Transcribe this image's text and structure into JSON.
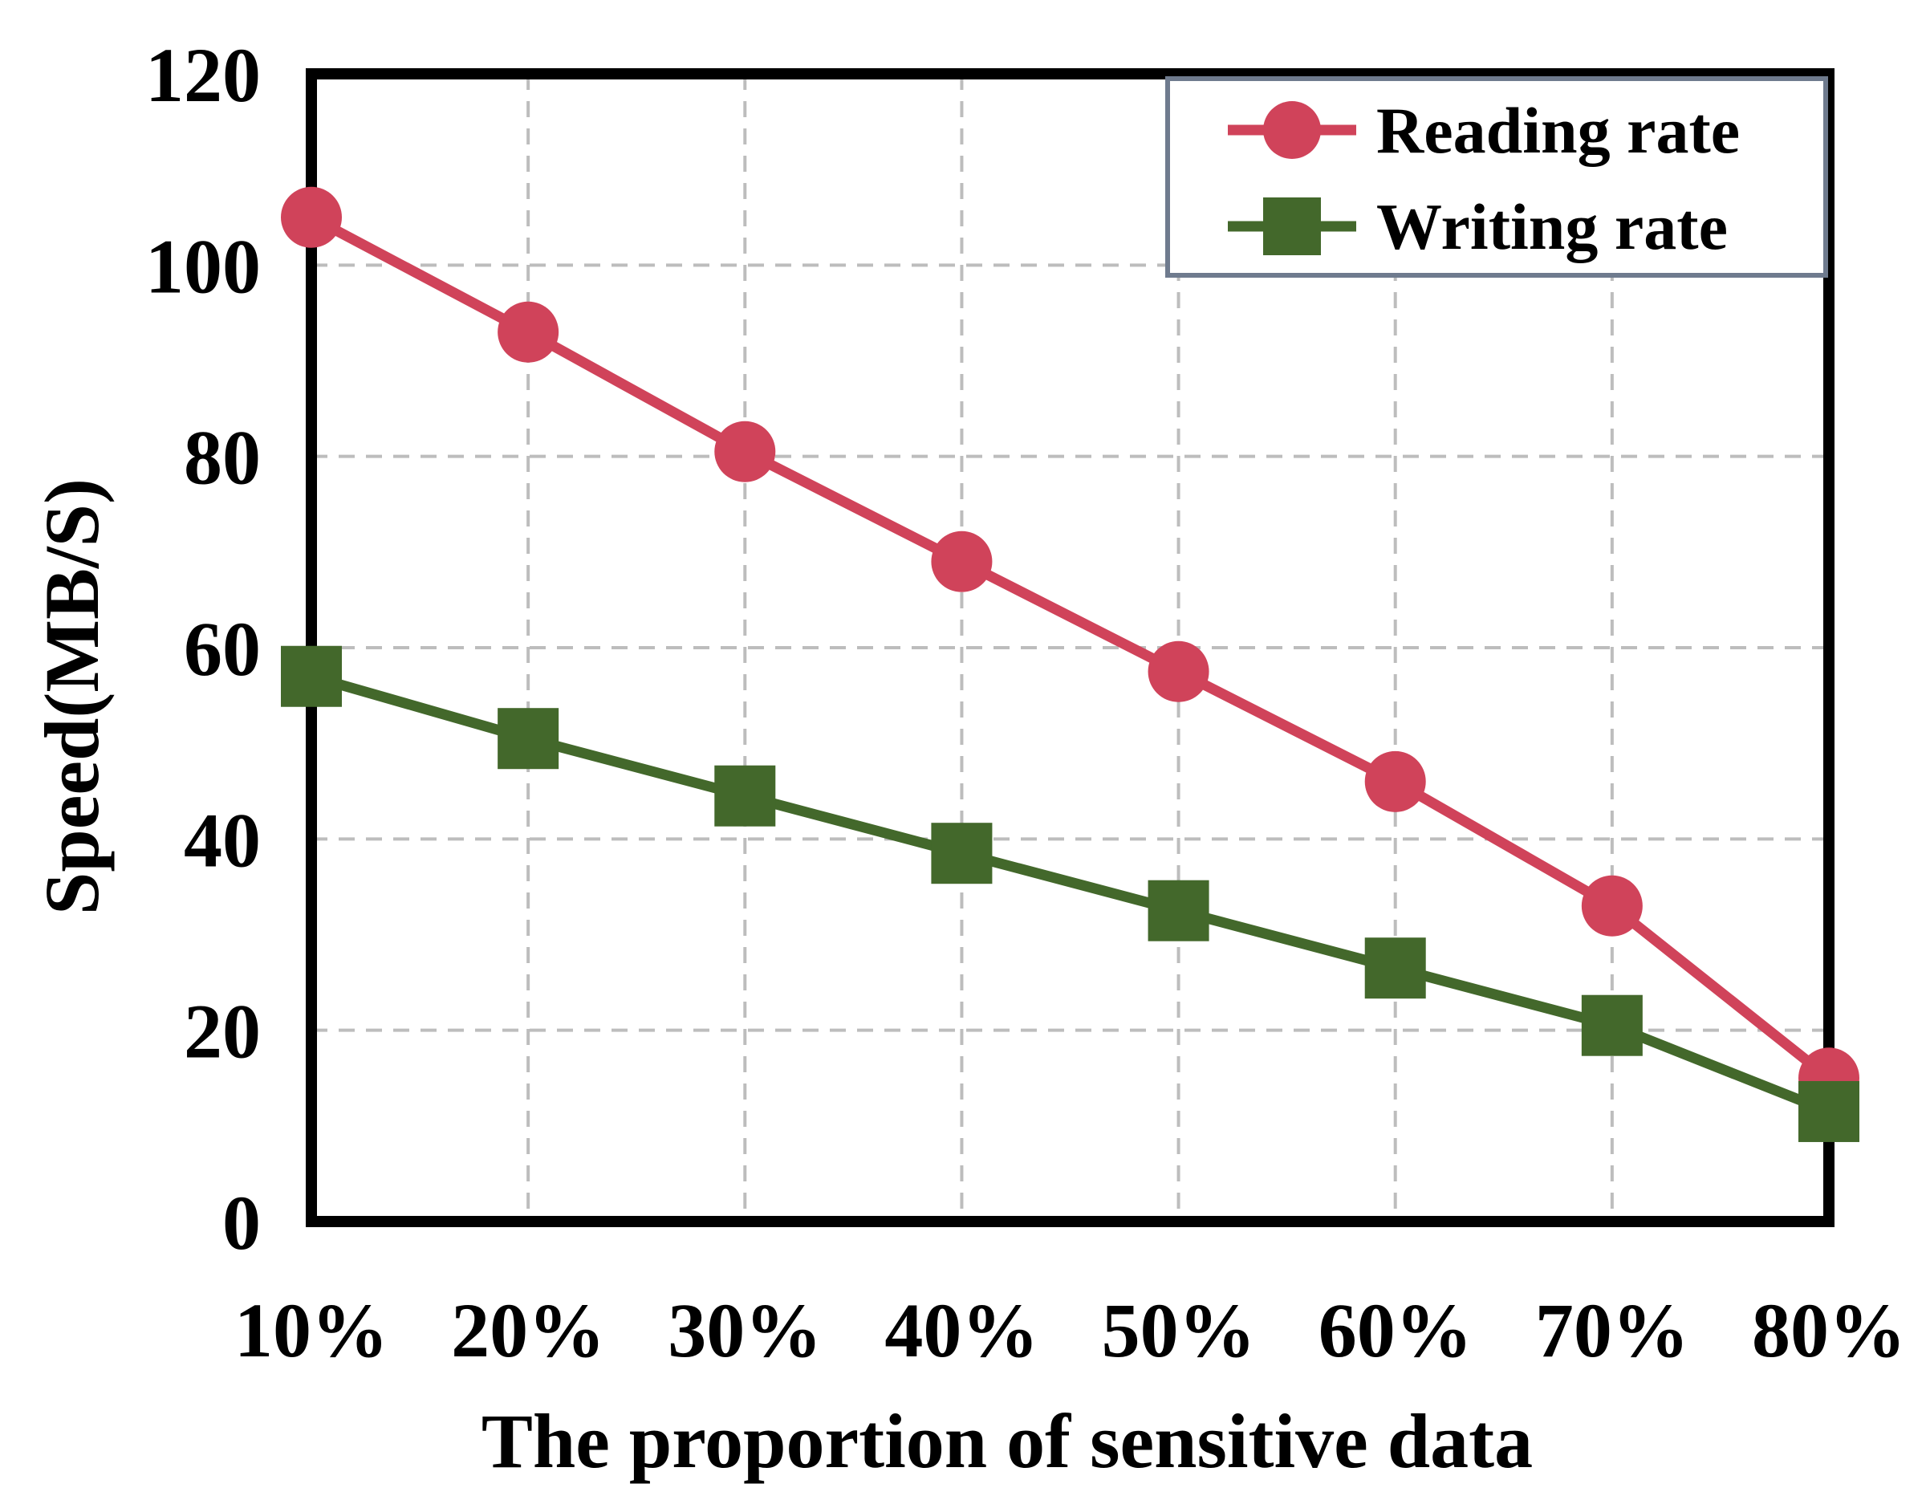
{
  "chart_data": {
    "type": "line",
    "title": "",
    "xlabel": "The proportion of sensitive data",
    "ylabel": "Speed(MB/S)",
    "categories": [
      "10%",
      "20%",
      "30%",
      "40%",
      "50%",
      "60%",
      "70%",
      "80%"
    ],
    "ylim": [
      0,
      120
    ],
    "yticks": [
      "0",
      "20",
      "40",
      "60",
      "80",
      "100",
      "120"
    ],
    "grid": true,
    "legend_position": "top-right",
    "series": [
      {
        "name": "Reading rate",
        "marker": "circle",
        "color": "#d0435a",
        "values": [
          105,
          93,
          80.5,
          69,
          57.5,
          46,
          33,
          15
        ]
      },
      {
        "name": "Writing rate",
        "marker": "square",
        "color": "#43682b",
        "values": [
          57,
          50.5,
          44.5,
          38.5,
          32.5,
          26.5,
          20.5,
          11.5
        ]
      }
    ]
  }
}
